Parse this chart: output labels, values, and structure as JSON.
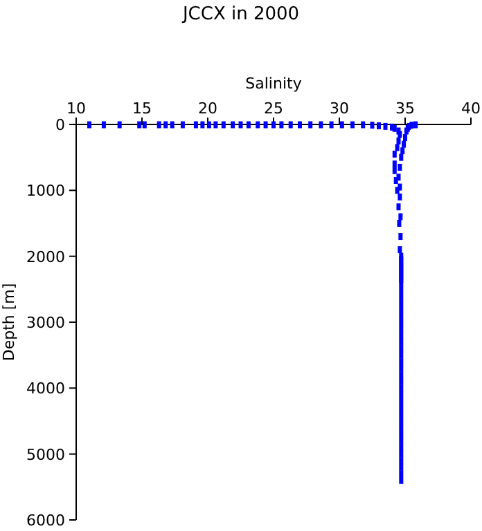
{
  "chart_data": {
    "type": "scatter",
    "title": "JCCX in 2000",
    "xlabel": "Salinity",
    "ylabel": "Depth [m]",
    "xlim": [
      10,
      40
    ],
    "xticks": [
      10,
      15,
      20,
      25,
      30,
      35,
      40
    ],
    "ylim": [
      6000,
      0
    ],
    "yticks": [
      0,
      1000,
      2000,
      3000,
      4000,
      5000,
      6000
    ],
    "grid": false,
    "marker": "square",
    "series": [
      {
        "color": "#0000ff",
        "x": [
          11,
          12.1,
          13.3,
          14.8,
          15.2,
          16.3,
          16.8,
          17.3,
          18.1,
          19.1,
          19.6,
          20.1,
          20.6,
          21.2,
          21.9,
          22.5,
          23.1,
          23.8,
          24.4,
          25,
          25.6,
          26.3,
          27,
          27.8,
          28.6,
          29.4,
          30.2,
          31,
          31.8,
          32.5,
          33,
          33.5,
          34,
          35.8,
          35.5,
          35.3,
          35.2,
          35.1,
          34.2,
          34.5,
          34.6,
          35,
          34.5,
          34.9,
          34.4,
          34.8,
          34.2,
          34.7,
          34.2,
          34.6,
          34.2,
          34.5,
          34.3,
          34.6,
          34.4,
          34.6,
          34.5,
          34.65,
          34.55,
          34.65,
          34.6,
          34.7,
          34.7,
          34.7,
          34.7,
          34.7,
          34.7,
          34.7,
          34.7,
          34.7,
          34.7,
          34.7,
          34.7,
          34.7,
          34.7,
          34.7,
          34.7,
          34.7,
          34.7,
          34.7,
          34.7,
          34.7,
          34.7,
          34.7,
          34.7,
          34.7,
          34.7,
          34.7,
          34.7,
          34.7,
          34.7,
          34.7,
          34.7,
          34.7,
          34.7,
          34.7,
          34.7,
          34.7,
          34.7,
          34.7
        ],
        "values": [
          5,
          5,
          5,
          5,
          5,
          5,
          5,
          5,
          5,
          5,
          5,
          5,
          5,
          5,
          5,
          5,
          5,
          5,
          5,
          5,
          5,
          5,
          5,
          5,
          5,
          5,
          5,
          5,
          5,
          10,
          20,
          30,
          40,
          5,
          10,
          30,
          60,
          100,
          60,
          100,
          150,
          200,
          250,
          300,
          350,
          400,
          450,
          500,
          600,
          650,
          700,
          800,
          850,
          950,
          1000,
          1100,
          1250,
          1400,
          1500,
          1700,
          1900,
          2000,
          2100,
          2200,
          2300,
          2400,
          2500,
          2600,
          2700,
          2800,
          2900,
          3000,
          3100,
          3200,
          3300,
          3400,
          3500,
          3600,
          3700,
          3800,
          3900,
          4000,
          4100,
          4200,
          4300,
          4400,
          4500,
          4600,
          4700,
          4800,
          4900,
          5000,
          5100,
          5200,
          5300,
          5400,
          2050,
          2150,
          2250,
          2350
        ]
      }
    ]
  }
}
